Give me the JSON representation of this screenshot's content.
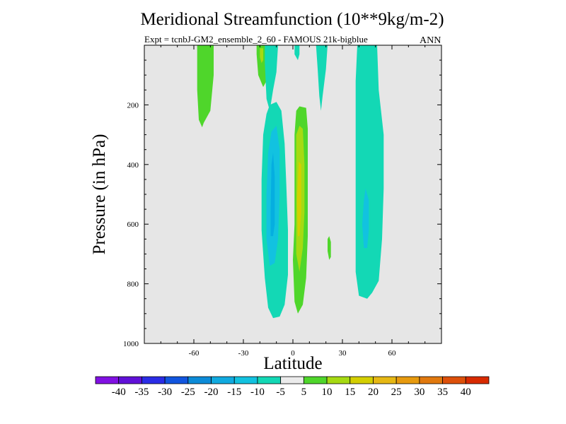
{
  "chart_data": {
    "type": "contour",
    "title": "Meridional Streamfunction (10**9kg/m-2)",
    "subtitle": "Expt = tcnbJ-GM2_ensemble_2_60 - FAMOUS 21k-bigblue",
    "season": "ANN",
    "xlabel": "Latitude",
    "ylabel": "Pressure (in hPa)",
    "xlim": [
      -90,
      90
    ],
    "ylim": [
      1000,
      0
    ],
    "xticks": [
      -60,
      -30,
      0,
      30,
      60
    ],
    "xtick_labels": [
      "-60",
      "-30",
      "0",
      "30",
      "60"
    ],
    "yticks": [
      200,
      400,
      600,
      800,
      1000
    ],
    "ytick_labels": [
      "200",
      "400",
      "600",
      "800",
      "1000"
    ],
    "background_color": "#e6e6e6",
    "regions": [
      {
        "name": "nh-mid-lat-positive",
        "level": 7.5,
        "color": "#4fd62b",
        "poly": [
          [
            -58,
            0
          ],
          [
            -48,
            0
          ],
          [
            -48,
            100
          ],
          [
            -50,
            220
          ],
          [
            -54,
            260
          ],
          [
            -55,
            275
          ],
          [
            -57,
            250
          ],
          [
            -58,
            150
          ]
        ]
      },
      {
        "name": "sh-upper-small-positive",
        "level": 7.5,
        "color": "#4fd62b",
        "poly": [
          [
            -22,
            0
          ],
          [
            -17,
            0
          ],
          [
            -16,
            60
          ],
          [
            -16,
            120
          ],
          [
            -18,
            140
          ],
          [
            -21,
            100
          ],
          [
            -22,
            30
          ]
        ]
      },
      {
        "name": "sh-upper-small-strong",
        "level": 12.5,
        "color": "#a6da12",
        "poly": [
          [
            -20,
            10
          ],
          [
            -18,
            10
          ],
          [
            -18,
            50
          ],
          [
            -19,
            60
          ],
          [
            -20,
            40
          ]
        ]
      },
      {
        "name": "sh-upper-thin-negative",
        "level": -7.5,
        "color": "#13d8b5",
        "poly": [
          [
            -17,
            0
          ],
          [
            -9,
            0
          ],
          [
            -10,
            90
          ],
          [
            -12,
            150
          ],
          [
            -14,
            220
          ],
          [
            -16,
            180
          ],
          [
            -17,
            60
          ]
        ]
      },
      {
        "name": "equator-thin-negative",
        "level": -7.5,
        "color": "#13d8b5",
        "poly": [
          [
            1,
            0
          ],
          [
            4,
            0
          ],
          [
            4,
            30
          ],
          [
            3,
            50
          ],
          [
            1,
            30
          ]
        ]
      },
      {
        "name": "equator-upper-right-negative",
        "level": -7.5,
        "color": "#13d8b5",
        "poly": [
          [
            14,
            0
          ],
          [
            21,
            0
          ],
          [
            20,
            80
          ],
          [
            18,
            170
          ],
          [
            17,
            220
          ],
          [
            16,
            170
          ],
          [
            15,
            80
          ]
        ]
      },
      {
        "name": "southern-cell-negative",
        "level": -7.5,
        "color": "#13d8b5",
        "poly": [
          [
            -19,
            450
          ],
          [
            -18,
            300
          ],
          [
            -16,
            230
          ],
          [
            -14,
            200
          ],
          [
            -10,
            190
          ],
          [
            -7,
            220
          ],
          [
            -5,
            330
          ],
          [
            -4,
            470
          ],
          [
            -3,
            620
          ],
          [
            -3,
            770
          ],
          [
            -5,
            870
          ],
          [
            -8,
            910
          ],
          [
            -12,
            915
          ],
          [
            -15,
            880
          ],
          [
            -17,
            780
          ],
          [
            -19,
            620
          ]
        ]
      },
      {
        "name": "southern-cell-core",
        "level": -12.5,
        "color": "#12c2e0",
        "poly": [
          [
            -16,
            500
          ],
          [
            -15,
            360
          ],
          [
            -13,
            290
          ],
          [
            -10,
            270
          ],
          [
            -8,
            350
          ],
          [
            -8,
            500
          ],
          [
            -9,
            650
          ],
          [
            -11,
            730
          ],
          [
            -14,
            740
          ],
          [
            -16,
            650
          ]
        ]
      },
      {
        "name": "southern-cell-center",
        "level": -17.5,
        "color": "#05aee0",
        "poly": [
          [
            -13.5,
            560
          ],
          [
            -13,
            400
          ],
          [
            -12,
            360
          ],
          [
            -11,
            440
          ],
          [
            -11,
            600
          ],
          [
            -12,
            640
          ],
          [
            -13.5,
            640
          ]
        ]
      },
      {
        "name": "northern-cell-positive",
        "level": 7.5,
        "color": "#4fd62b",
        "poly": [
          [
            1,
            470
          ],
          [
            1,
            300
          ],
          [
            2,
            220
          ],
          [
            4,
            205
          ],
          [
            8,
            210
          ],
          [
            9,
            280
          ],
          [
            9,
            470
          ],
          [
            9,
            640
          ],
          [
            8,
            780
          ],
          [
            6,
            870
          ],
          [
            3,
            900
          ],
          [
            1,
            860
          ],
          [
            0,
            720
          ],
          [
            1,
            600
          ]
        ]
      },
      {
        "name": "northern-cell-positive-2",
        "level": 12.5,
        "color": "#a6da12",
        "poly": [
          [
            2,
            480
          ],
          [
            2,
            300
          ],
          [
            4,
            270
          ],
          [
            6,
            280
          ],
          [
            7,
            400
          ],
          [
            7,
            560
          ],
          [
            6,
            680
          ],
          [
            4,
            760
          ],
          [
            2,
            700
          ]
        ]
      },
      {
        "name": "northern-cell-core",
        "level": 17.5,
        "color": "#d4cf00",
        "poly": [
          [
            2.5,
            520
          ],
          [
            3.5,
            390
          ],
          [
            5,
            400
          ],
          [
            5,
            560
          ],
          [
            4,
            640
          ],
          [
            3,
            640
          ]
        ]
      },
      {
        "name": "northern-cell-spot",
        "level": 7.5,
        "color": "#4fd62b",
        "poly": [
          [
            21,
            690
          ],
          [
            21,
            650
          ],
          [
            22,
            640
          ],
          [
            23,
            660
          ],
          [
            23,
            710
          ],
          [
            22,
            720
          ]
        ]
      },
      {
        "name": "nh-ferrel-negative",
        "level": -7.5,
        "color": "#13d8b5",
        "poly": [
          [
            39,
            0
          ],
          [
            51,
            0
          ],
          [
            52,
            150
          ],
          [
            55,
            300
          ],
          [
            55,
            480
          ],
          [
            54,
            650
          ],
          [
            52,
            790
          ],
          [
            48,
            830
          ],
          [
            45,
            850
          ],
          [
            40,
            840
          ],
          [
            38,
            760
          ],
          [
            38,
            560
          ],
          [
            38,
            380
          ],
          [
            38,
            120
          ]
        ]
      },
      {
        "name": "nh-ferrel-core",
        "level": -12.5,
        "color": "#12c2e0",
        "poly": [
          [
            42,
            600
          ],
          [
            43,
            520
          ],
          [
            44,
            480
          ],
          [
            46,
            520
          ],
          [
            46,
            620
          ],
          [
            45,
            680
          ],
          [
            43,
            680
          ]
        ]
      }
    ],
    "colorbar": {
      "colors": [
        "#8110e3",
        "#6010d8",
        "#2a2ce6",
        "#1155df",
        "#0c8bd8",
        "#11aae0",
        "#12c2e0",
        "#13d8b5",
        "#ebebeb",
        "#4fd62b",
        "#a6da12",
        "#d4cf00",
        "#e6b814",
        "#e79a0e",
        "#e1790e",
        "#dd500a",
        "#d82a00"
      ],
      "labels": [
        "-40",
        "-35",
        "-30",
        "-25",
        "-20",
        "-15",
        "-10",
        "-5",
        "5",
        "10",
        "15",
        "20",
        "25",
        "30",
        "35",
        "40"
      ]
    }
  }
}
